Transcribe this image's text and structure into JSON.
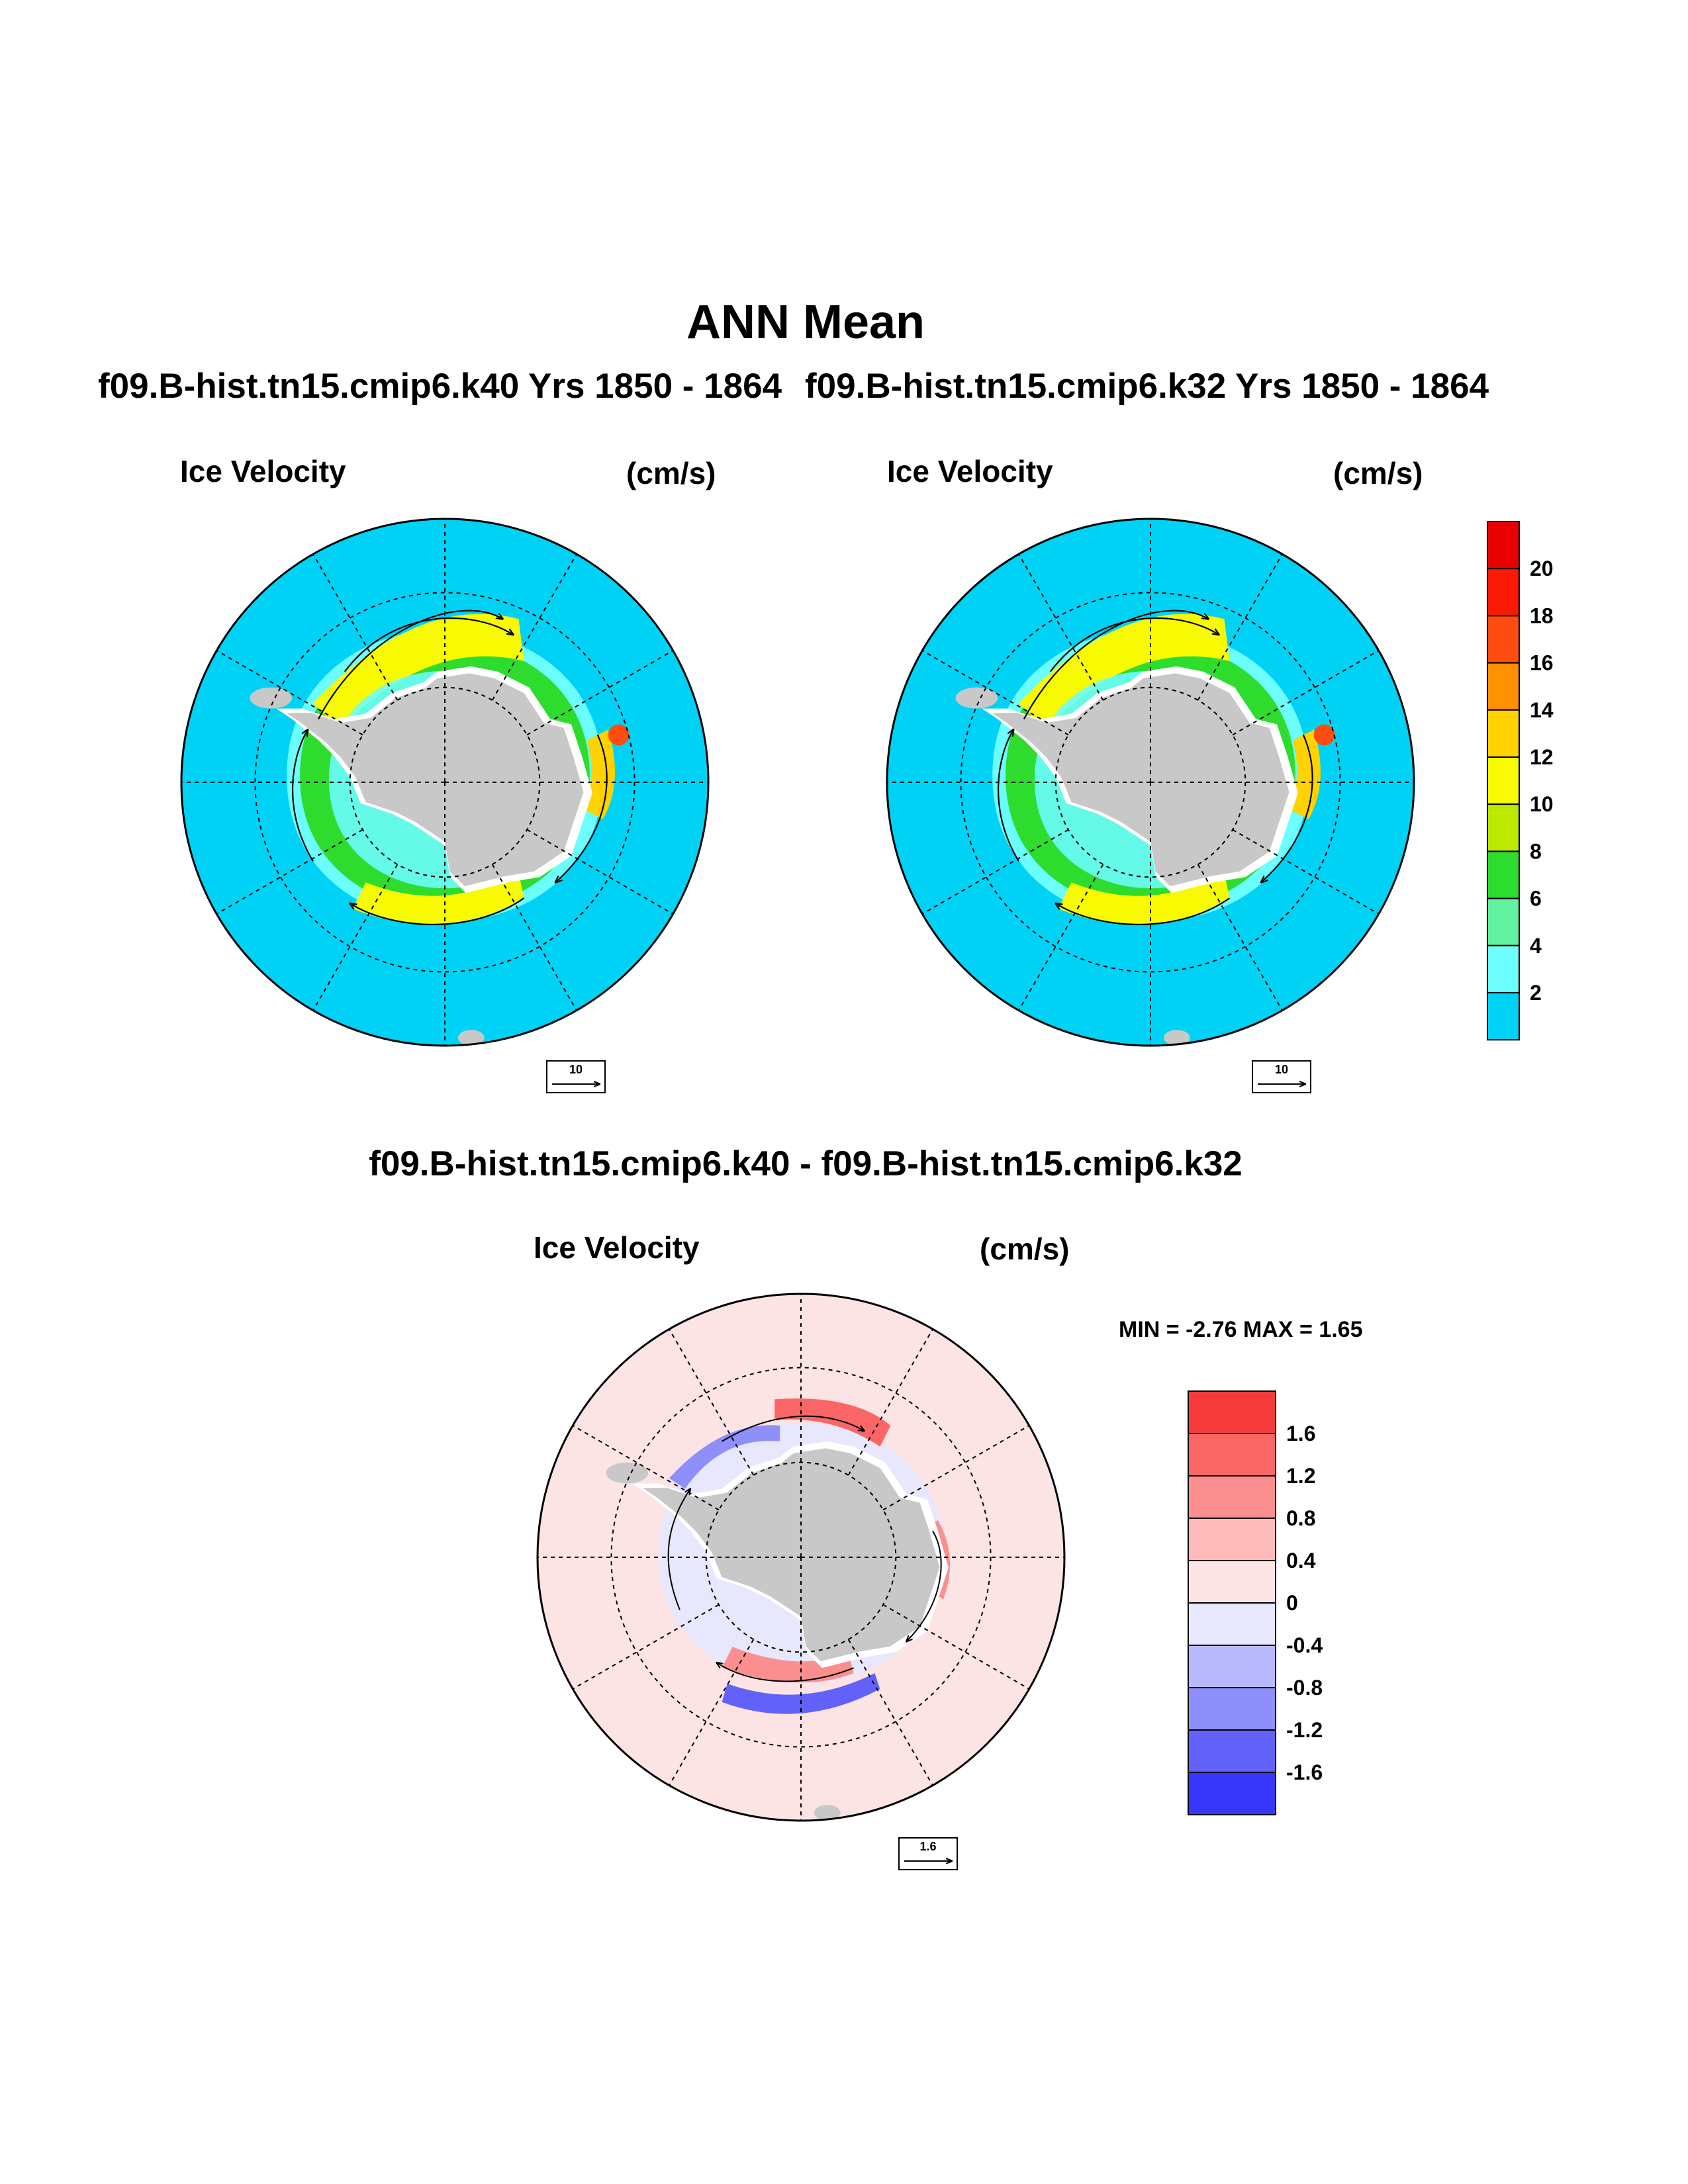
{
  "figure": {
    "title": "ANN Mean",
    "diff_title": "f09.B-hist.tn15.cmip6.k40 - f09.B-hist.tn15.cmip6.k32"
  },
  "panels": [
    {
      "id": "k40",
      "header": "f09.B-hist.tn15.cmip6.k40  Yrs 1850 - 1864",
      "left_label": "Ice Velocity",
      "right_label": "(cm/s)",
      "reference_vector": "10"
    },
    {
      "id": "k32",
      "header": "f09.B-hist.tn15.cmip6.k32  Yrs 1850 - 1864",
      "left_label": "Ice Velocity",
      "right_label": "(cm/s)",
      "reference_vector": "10"
    },
    {
      "id": "diff",
      "left_label": "Ice Velocity",
      "right_label": "(cm/s)",
      "min_max": "MIN =  -2.76 MAX =   1.65",
      "reference_vector": "1.6"
    }
  ],
  "colorbars": {
    "speed": {
      "labels": [
        "2",
        "4",
        "6",
        "8",
        "10",
        "12",
        "14",
        "16",
        "18",
        "20"
      ],
      "colors": [
        "#00d2f5",
        "#6cfdfd",
        "#60f2a0",
        "#2edc2e",
        "#bde800",
        "#f7fa00",
        "#ffd200",
        "#ff9000",
        "#ff4c10",
        "#f81a04",
        "#e80000"
      ]
    },
    "diff": {
      "labels": [
        "1.6",
        "1.2",
        "0.8",
        "0.4",
        "0",
        "-0.4",
        "-0.8",
        "-1.2",
        "-1.6"
      ],
      "colors": [
        "#f73b3b",
        "#fa6666",
        "#fb8f8f",
        "#fdbaba",
        "#fde4e4",
        "#e7e7fd",
        "#b8b8fd",
        "#8f8ffb",
        "#6262fa",
        "#3737fb"
      ]
    }
  },
  "map": {
    "ocean_color": "#00d2f5",
    "land_color": "#c8c8c8",
    "diff_ocean_color": "#fde4e4"
  }
}
